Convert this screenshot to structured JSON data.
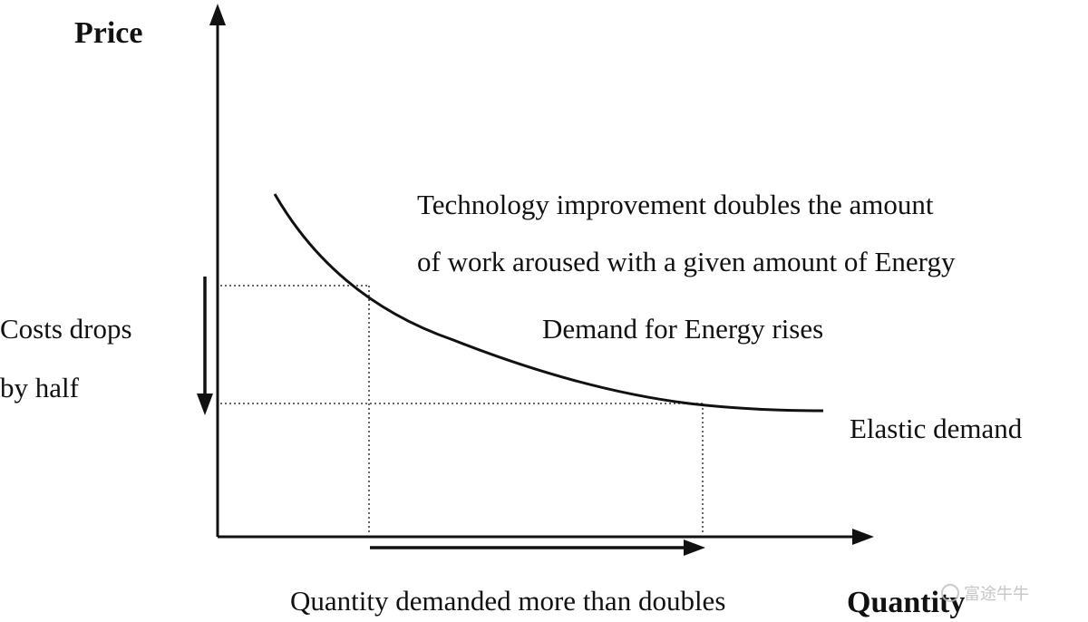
{
  "axes": {
    "y_label": "Price",
    "x_label": "Quantity"
  },
  "annotations": {
    "tech_line1": "Technology  improvement  doubles  the  amount",
    "tech_line2": "of work aroused with a given amount of Energy",
    "demand_rises": "Demand for Energy rises",
    "elastic": "Elastic demand",
    "cost_line1": "Costs  drops",
    "cost_line2": "by half",
    "quantity_note": "Quantity demanded more than doubles"
  },
  "watermark": {
    "text": "富途牛牛"
  },
  "colors": {
    "ink": "#111111",
    "dotted": "#333333"
  }
}
